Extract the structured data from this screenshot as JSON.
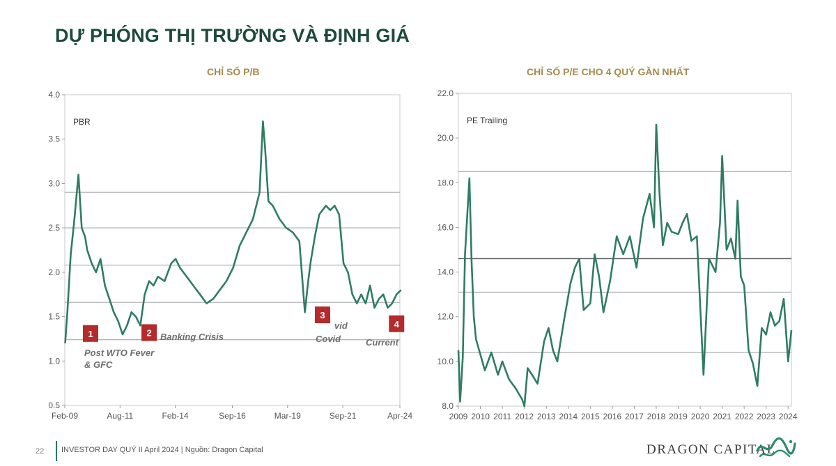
{
  "page": {
    "title": "DỰ PHÓNG THỊ TRƯỜNG VÀ ĐỊNH GIÁ",
    "page_number": "22",
    "footer": "INVESTOR DAY QUÝ II April 2024 | Nguồn: Dragon Capital",
    "brand": "DRAGON CAPITAL"
  },
  "colors": {
    "series": "#2e7d62",
    "title": "#1e4a3a",
    "subtitle": "#a48a4e",
    "marker": "#b52a2a",
    "ref_line": "#9a9a9a"
  },
  "chart_data": [
    {
      "type": "line",
      "title": "CHỈ SỐ P/B",
      "legend": "PBR",
      "legend_position": "top-left",
      "xlabel": "",
      "ylabel": "",
      "x_ticks": [
        "Feb-09",
        "Aug-11",
        "Feb-14",
        "Sep-16",
        "Mar-19",
        "Sep-21",
        "Apr-24"
      ],
      "x_range": [
        "2009-02",
        "2024-04"
      ],
      "ylim": [
        0.5,
        4.0
      ],
      "y_ticks": [
        "0.5",
        "1.0",
        "1.5",
        "2.0",
        "2.5",
        "3.0",
        "3.5",
        "4.0"
      ],
      "grid": false,
      "reference_lines": [
        2.9,
        2.5,
        2.08,
        1.66,
        1.24
      ],
      "series": [
        {
          "x": [
            2009.1,
            2009.2,
            2009.35,
            2009.5,
            2009.7,
            2009.85,
            2010.0,
            2010.1,
            2010.3,
            2010.5,
            2010.7,
            2010.9,
            2011.1,
            2011.3,
            2011.5,
            2011.7,
            2011.9,
            2012.1,
            2012.3,
            2012.5,
            2012.7,
            2012.9,
            2013.1,
            2013.3,
            2013.6,
            2013.9,
            2014.1,
            2014.3,
            2014.6,
            2014.9,
            2015.2,
            2015.5,
            2015.8,
            2016.1,
            2016.4,
            2016.7,
            2017.0,
            2017.3,
            2017.6,
            2017.9,
            2018.05,
            2018.15,
            2018.3,
            2018.5,
            2018.8,
            2019.1,
            2019.4,
            2019.7,
            2019.95,
            2020.1,
            2020.2,
            2020.4,
            2020.6,
            2020.9,
            2021.1,
            2021.3,
            2021.5,
            2021.7,
            2021.9,
            2022.1,
            2022.3,
            2022.5,
            2022.7,
            2022.9,
            2023.1,
            2023.3,
            2023.5,
            2023.7,
            2023.9,
            2024.1,
            2024.3
          ],
          "y": [
            1.2,
            1.55,
            2.2,
            2.55,
            3.1,
            2.5,
            2.4,
            2.25,
            2.1,
            2.0,
            2.15,
            1.85,
            1.7,
            1.55,
            1.45,
            1.3,
            1.4,
            1.55,
            1.5,
            1.4,
            1.75,
            1.9,
            1.85,
            1.95,
            1.9,
            2.1,
            2.15,
            2.05,
            1.95,
            1.85,
            1.75,
            1.65,
            1.7,
            1.8,
            1.9,
            2.05,
            2.3,
            2.45,
            2.6,
            2.9,
            3.7,
            3.4,
            2.8,
            2.75,
            2.6,
            2.5,
            2.45,
            2.35,
            1.55,
            1.9,
            2.1,
            2.4,
            2.65,
            2.75,
            2.7,
            2.75,
            2.65,
            2.1,
            2.0,
            1.75,
            1.65,
            1.75,
            1.65,
            1.85,
            1.6,
            1.7,
            1.75,
            1.6,
            1.65,
            1.75,
            1.8
          ]
        }
      ],
      "annotations": [
        {
          "number": "1",
          "label": "Post WTO Fever\n& GFC",
          "x": 2010.25,
          "y": 1.31
        },
        {
          "number": "2",
          "label": "Banking Crisis",
          "x": 2012.9,
          "y": 1.32
        },
        {
          "number": "3",
          "label": "Covid",
          "x": 2020.75,
          "y": 1.52
        },
        {
          "number": "4",
          "label": "Current",
          "x": 2024.1,
          "y": 1.42
        }
      ],
      "annotation_fragments": [
        "vid"
      ]
    },
    {
      "type": "line",
      "title": "CHỈ SỐ P/E  CHO 4 QUÝ GẦN NHẤT",
      "legend": "PE Trailing",
      "legend_position": "top-left",
      "xlabel": "",
      "ylabel": "",
      "x_ticks": [
        "2009",
        "2010",
        "2011",
        "2012",
        "2013",
        "2014",
        "2015",
        "2016",
        "2017",
        "2018",
        "2019",
        "2020",
        "2021",
        "2022",
        "2023",
        "2024"
      ],
      "x_range": [
        2009,
        2024.15
      ],
      "ylim": [
        8.0,
        22.0
      ],
      "y_ticks": [
        "8.0",
        "10.0",
        "12.0",
        "14.0",
        "16.0",
        "18.0",
        "20.0",
        "22.0"
      ],
      "grid": false,
      "reference_lines": [
        18.5,
        14.6,
        13.1,
        10.4
      ],
      "series": [
        {
          "x": [
            2009.0,
            2009.08,
            2009.2,
            2009.3,
            2009.4,
            2009.5,
            2009.6,
            2009.7,
            2009.8,
            2010.0,
            2010.2,
            2010.5,
            2010.8,
            2011.0,
            2011.3,
            2011.6,
            2011.9,
            2012.0,
            2012.15,
            2012.35,
            2012.6,
            2012.9,
            2013.1,
            2013.3,
            2013.5,
            2013.8,
            2014.1,
            2014.3,
            2014.5,
            2014.7,
            2015.0,
            2015.2,
            2015.4,
            2015.6,
            2015.9,
            2016.2,
            2016.5,
            2016.8,
            2017.1,
            2017.4,
            2017.7,
            2017.9,
            2018.0,
            2018.15,
            2018.3,
            2018.5,
            2018.7,
            2019.0,
            2019.2,
            2019.4,
            2019.6,
            2019.85,
            2020.15,
            2020.4,
            2020.7,
            2020.9,
            2021.0,
            2021.2,
            2021.4,
            2021.6,
            2021.7,
            2021.85,
            2022.0,
            2022.2,
            2022.4,
            2022.6,
            2022.8,
            2023.0,
            2023.2,
            2023.4,
            2023.6,
            2023.8,
            2024.0,
            2024.15
          ],
          "y": [
            10.5,
            8.2,
            10.2,
            14.8,
            16.5,
            18.2,
            14.5,
            12.0,
            11.0,
            10.3,
            9.6,
            10.4,
            9.4,
            10.0,
            9.2,
            8.8,
            8.3,
            8.0,
            9.7,
            9.4,
            9.0,
            10.9,
            11.5,
            10.5,
            10.0,
            11.8,
            13.5,
            14.2,
            14.6,
            12.3,
            12.6,
            14.8,
            13.8,
            12.2,
            13.6,
            15.6,
            14.8,
            15.6,
            14.2,
            16.4,
            17.5,
            16.0,
            20.6,
            17.5,
            15.2,
            16.2,
            15.8,
            15.7,
            16.2,
            16.6,
            15.4,
            15.6,
            9.4,
            14.6,
            14.0,
            16.2,
            19.2,
            15.0,
            15.5,
            14.6,
            17.2,
            13.8,
            13.4,
            10.5,
            9.9,
            8.9,
            11.5,
            11.2,
            12.2,
            11.6,
            11.8,
            12.8,
            10.0,
            11.4
          ]
        }
      ]
    }
  ]
}
